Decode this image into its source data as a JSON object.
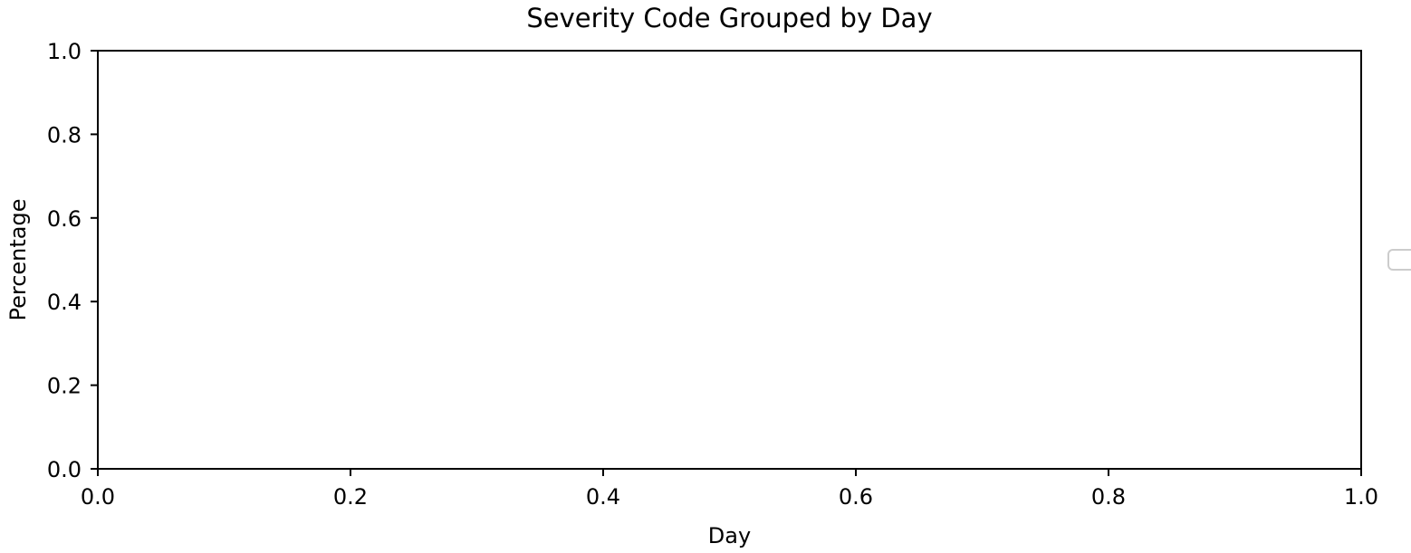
{
  "chart_data": {
    "type": "bar",
    "title": "Severity Code Grouped by Day",
    "xlabel": "Day",
    "ylabel": "Percentage",
    "xlim": [
      0.0,
      1.0
    ],
    "ylim": [
      0.0,
      1.0
    ],
    "x_tick_labels": [
      "0.0",
      "0.2",
      "0.4",
      "0.6",
      "0.8",
      "1.0"
    ],
    "y_tick_labels": [
      "0.0",
      "0.2",
      "0.4",
      "0.6",
      "0.8",
      "1.0"
    ],
    "categories": [],
    "series": [],
    "grid": false,
    "legend": {
      "placement": "center-right",
      "entries": []
    }
  }
}
